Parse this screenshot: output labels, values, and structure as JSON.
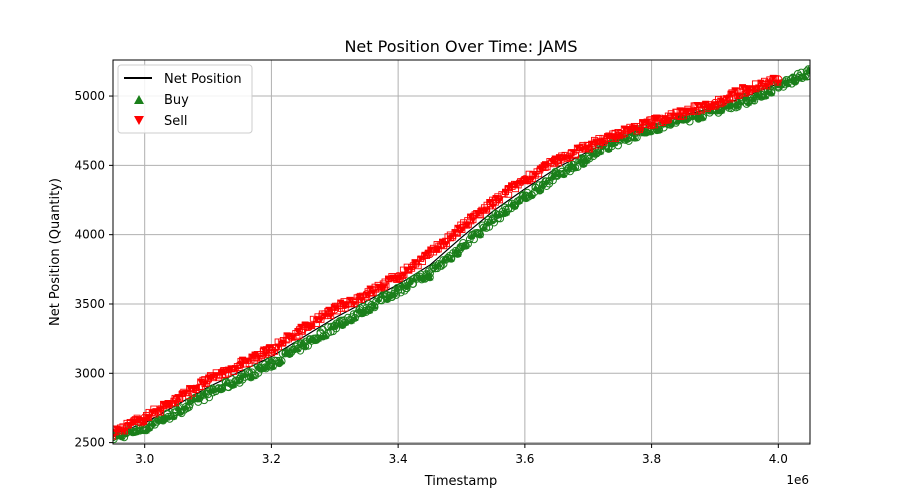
{
  "chart_data": {
    "type": "scatter",
    "title": "Net Position Over Time: JAMS",
    "xlabel": "Timestamp",
    "ylabel": "Net Position (Quantity)",
    "x_offset_label": "1e6",
    "xlim": [
      2.95,
      4.05
    ],
    "ylim": [
      2490,
      5260
    ],
    "x_ticks": [
      3.0,
      3.2,
      3.4,
      3.6,
      3.8,
      4.0
    ],
    "x_tick_labels": [
      "3.0",
      "3.2",
      "3.4",
      "3.6",
      "3.8",
      "4.0"
    ],
    "y_ticks": [
      2500,
      3000,
      3500,
      4000,
      4500,
      5000
    ],
    "y_tick_labels": [
      "2500",
      "3000",
      "3500",
      "4000",
      "4500",
      "5000"
    ],
    "grid": true,
    "legend_position": "top-left",
    "series": [
      {
        "name": "Net Position",
        "kind": "line",
        "color": "#000000",
        "x": [
          2.95,
          3.0,
          3.05,
          3.1,
          3.15,
          3.2,
          3.25,
          3.3,
          3.35,
          3.4,
          3.45,
          3.5,
          3.55,
          3.6,
          3.65,
          3.7,
          3.75,
          3.8,
          3.85,
          3.9,
          3.95,
          4.0,
          4.05
        ],
        "y": [
          2560,
          2640,
          2770,
          2900,
          3010,
          3120,
          3260,
          3400,
          3520,
          3640,
          3780,
          3980,
          4170,
          4330,
          4480,
          4600,
          4700,
          4790,
          4860,
          4920,
          5000,
          5090,
          5170
        ]
      },
      {
        "name": "Buy",
        "kind": "scatter",
        "marker": "triangle-up",
        "color": "#1a7f1a",
        "x": [
          2.95,
          3.0,
          3.05,
          3.1,
          3.15,
          3.2,
          3.25,
          3.3,
          3.35,
          3.4,
          3.45,
          3.5,
          3.55,
          3.6,
          3.65,
          3.7,
          3.75,
          3.8,
          3.85,
          3.9,
          3.95,
          4.0,
          4.05
        ],
        "y": [
          2540,
          2610,
          2720,
          2850,
          2960,
          3070,
          3200,
          3340,
          3470,
          3600,
          3720,
          3910,
          4110,
          4270,
          4430,
          4560,
          4680,
          4770,
          4830,
          4900,
          4970,
          5070,
          5170
        ]
      },
      {
        "name": "Sell",
        "kind": "scatter",
        "marker": "triangle-down",
        "color": "#ff0000",
        "x": [
          2.95,
          3.0,
          3.05,
          3.1,
          3.15,
          3.2,
          3.25,
          3.3,
          3.35,
          3.4,
          3.45,
          3.5,
          3.55,
          3.6,
          3.65,
          3.7,
          3.75,
          3.8,
          3.85,
          3.9,
          3.95,
          4.0
        ],
        "y": [
          2570,
          2680,
          2810,
          2950,
          3060,
          3170,
          3320,
          3460,
          3570,
          3700,
          3860,
          4050,
          4230,
          4400,
          4530,
          4640,
          4730,
          4810,
          4880,
          4950,
          5050,
          5120
        ]
      }
    ]
  }
}
